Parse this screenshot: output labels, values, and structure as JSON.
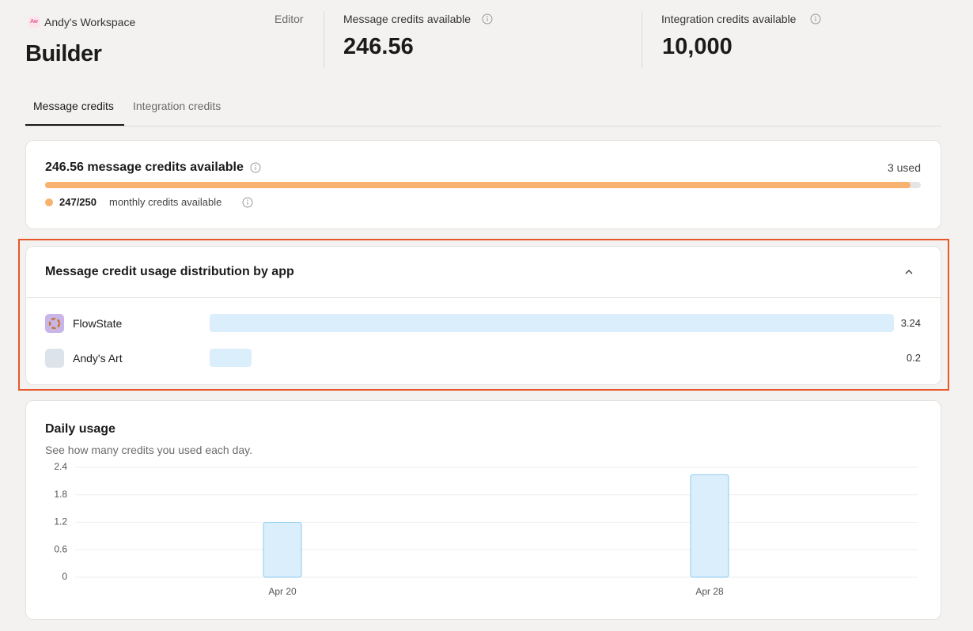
{
  "header": {
    "badge": "Aw",
    "workspace": "Andy's Workspace",
    "title": "Builder",
    "role": "Editor"
  },
  "stats": [
    {
      "label": "Message credits available",
      "value": "246.56"
    },
    {
      "label": "Integration credits available",
      "value": "10,000"
    }
  ],
  "tabs": [
    "Message credits",
    "Integration credits"
  ],
  "summary": {
    "title": "246.56 message credits available",
    "used": "3 used",
    "monthly": "247/250",
    "monthly_available": 247,
    "monthly_total": 250,
    "monthly_label": "monthly credits available",
    "color": "#f7b26f"
  },
  "distribution": {
    "title": "Message credit usage distribution by app",
    "color": "#dbeefb",
    "apps": [
      {
        "name": "FlowState",
        "value": 3.24
      },
      {
        "name": "Andy's Art",
        "value": 0.2
      }
    ]
  },
  "chart_data": {
    "type": "bar",
    "title": "Daily usage",
    "subtitle": "See how many credits you used each day.",
    "categories": [
      "Apr 20",
      "Apr 28"
    ],
    "values": [
      1.2,
      2.24
    ],
    "color": "#dbeefb",
    "edge_color": "#8ccbf0",
    "ylim": [
      0,
      2.4
    ],
    "yticks": [
      0,
      0.6,
      1.2,
      1.8,
      2.4
    ],
    "grid": true
  }
}
